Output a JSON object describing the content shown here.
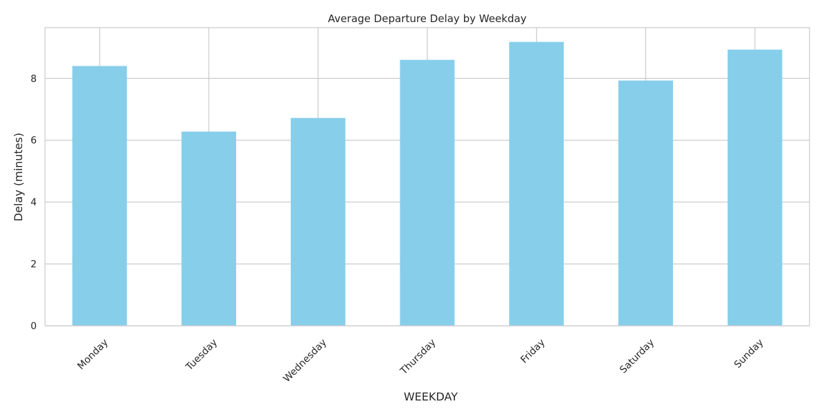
{
  "colors": {
    "bar": "#87CEEB",
    "grid": "#cccccc",
    "frame": "#cccccc",
    "text": "#262626",
    "background": "#ffffff"
  },
  "chart_data": {
    "type": "bar",
    "title": "Average Departure Delay by Weekday",
    "xlabel": "WEEKDAY",
    "ylabel": "Delay (minutes)",
    "categories": [
      "Monday",
      "Tuesday",
      "Wednesday",
      "Thursday",
      "Friday",
      "Saturday",
      "Sunday"
    ],
    "values": [
      8.4,
      6.28,
      6.72,
      8.6,
      9.18,
      7.93,
      8.93
    ],
    "ylim": [
      0,
      9.64
    ],
    "yticks": [
      0,
      2,
      4,
      6,
      8
    ],
    "grid": true,
    "legend": "none"
  }
}
